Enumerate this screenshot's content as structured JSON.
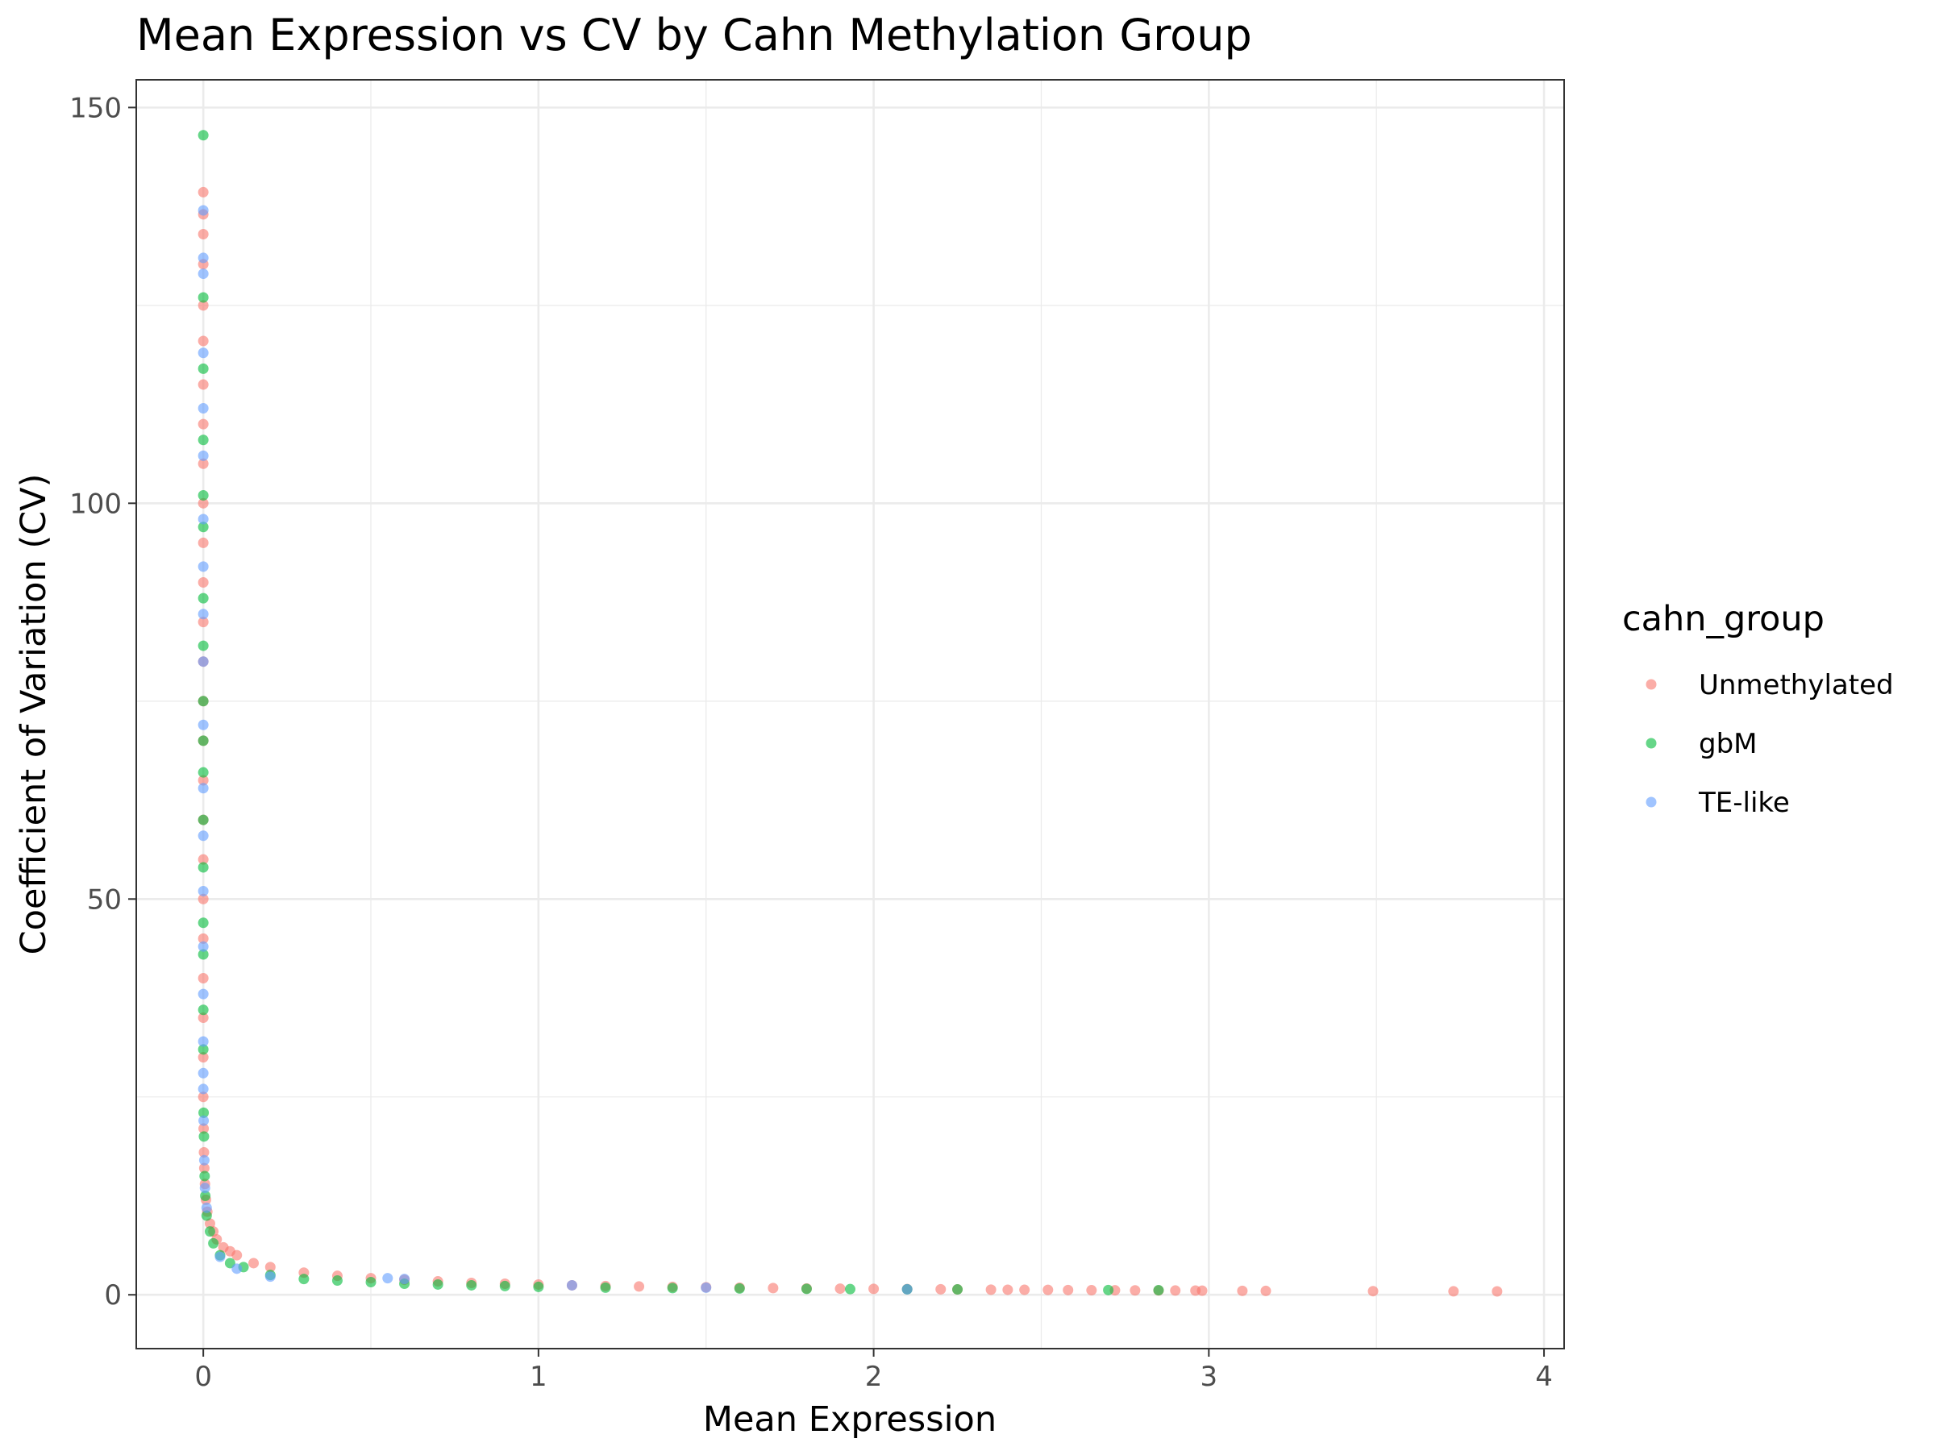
{
  "chart_data": {
    "type": "scatter",
    "title": "Mean Expression vs CV by Cahn Methylation Group",
    "xlabel": "Mean Expression",
    "ylabel": "Coefficient of Variation (CV)",
    "xlim": [
      -0.2,
      4.06
    ],
    "ylim": [
      -6.8,
      153.5
    ],
    "x_ticks": [
      0,
      1,
      2,
      3,
      4
    ],
    "x_tick_labels": [
      "0",
      "1",
      "2",
      "3",
      "4"
    ],
    "y_ticks": [
      0,
      50,
      100,
      150
    ],
    "y_tick_labels": [
      "0",
      "50",
      "100",
      "150"
    ],
    "grid": true,
    "legend": {
      "title": "cahn_group",
      "position": "right",
      "entries": [
        {
          "label": "Unmethylated",
          "color": "#F8766D"
        },
        {
          "label": "gbM",
          "color": "#00BA38"
        },
        {
          "label": "TE-like",
          "color": "#619CFF"
        }
      ]
    },
    "trend": "CV decreases sharply as mean expression increases, approximately CV ≈ 1/sqrt(mean)",
    "series": [
      {
        "name": "Unmethylated",
        "color": "#F8766D",
        "points": [
          [
            0.0,
            139.3
          ],
          [
            0.0,
            136.5
          ],
          [
            0.0,
            134.0
          ],
          [
            0.0,
            130.2
          ],
          [
            0.0,
            125.0
          ],
          [
            0.0,
            120.5
          ],
          [
            0.0,
            115.0
          ],
          [
            0.0,
            110.0
          ],
          [
            0.0,
            105.0
          ],
          [
            0.0,
            100.0
          ],
          [
            0.0,
            95.0
          ],
          [
            0.0,
            90.0
          ],
          [
            0.0,
            85.0
          ],
          [
            0.0,
            80.0
          ],
          [
            0.0,
            75.0
          ],
          [
            0.0,
            70.0
          ],
          [
            0.0,
            65.0
          ],
          [
            0.0,
            60.0
          ],
          [
            0.0,
            55.0
          ],
          [
            0.0,
            50.0
          ],
          [
            0.0,
            45.0
          ],
          [
            0.0,
            40.0
          ],
          [
            0.0,
            35.0
          ],
          [
            0.0,
            30.0
          ],
          [
            0.0,
            25.0
          ],
          [
            0.001,
            21.0
          ],
          [
            0.002,
            18.0
          ],
          [
            0.003,
            16.0
          ],
          [
            0.005,
            14.0
          ],
          [
            0.008,
            12.0
          ],
          [
            0.012,
            10.5
          ],
          [
            0.02,
            9.0
          ],
          [
            0.03,
            8.0
          ],
          [
            0.04,
            7.0
          ],
          [
            0.06,
            6.0
          ],
          [
            0.08,
            5.5
          ],
          [
            0.1,
            5.0
          ],
          [
            0.15,
            4.0
          ],
          [
            0.2,
            3.5
          ],
          [
            0.3,
            2.8
          ],
          [
            0.4,
            2.4
          ],
          [
            0.5,
            2.1
          ],
          [
            0.6,
            1.9
          ],
          [
            0.7,
            1.7
          ],
          [
            0.8,
            1.5
          ],
          [
            0.9,
            1.4
          ],
          [
            1.0,
            1.3
          ],
          [
            1.1,
            1.2
          ],
          [
            1.2,
            1.1
          ],
          [
            1.3,
            1.05
          ],
          [
            1.4,
            1.0
          ],
          [
            1.5,
            0.95
          ],
          [
            1.6,
            0.9
          ],
          [
            1.7,
            0.85
          ],
          [
            1.8,
            0.8
          ],
          [
            1.9,
            0.78
          ],
          [
            2.0,
            0.75
          ],
          [
            2.1,
            0.72
          ],
          [
            2.2,
            0.7
          ],
          [
            2.25,
            0.68
          ],
          [
            2.35,
            0.65
          ],
          [
            2.4,
            0.64
          ],
          [
            2.45,
            0.63
          ],
          [
            2.52,
            0.62
          ],
          [
            2.58,
            0.6
          ],
          [
            2.65,
            0.58
          ],
          [
            2.72,
            0.57
          ],
          [
            2.78,
            0.56
          ],
          [
            2.85,
            0.55
          ],
          [
            2.9,
            0.54
          ],
          [
            2.96,
            0.53
          ],
          [
            2.98,
            0.52
          ],
          [
            3.1,
            0.5
          ],
          [
            3.17,
            0.49
          ],
          [
            3.49,
            0.46
          ],
          [
            3.73,
            0.44
          ],
          [
            3.86,
            0.43
          ]
        ]
      },
      {
        "name": "gbM",
        "color": "#00BA38",
        "points": [
          [
            0.0,
            146.5
          ],
          [
            0.0,
            126.0
          ],
          [
            0.0,
            117.0
          ],
          [
            0.0,
            108.0
          ],
          [
            0.0,
            101.0
          ],
          [
            0.0,
            97.0
          ],
          [
            0.0,
            88.0
          ],
          [
            0.0,
            82.0
          ],
          [
            0.0,
            75.0
          ],
          [
            0.0,
            70.0
          ],
          [
            0.0,
            66.0
          ],
          [
            0.0,
            60.0
          ],
          [
            0.0,
            54.0
          ],
          [
            0.0,
            47.0
          ],
          [
            0.0,
            43.0
          ],
          [
            0.0,
            36.0
          ],
          [
            0.0,
            31.0
          ],
          [
            0.001,
            23.0
          ],
          [
            0.002,
            20.0
          ],
          [
            0.004,
            15.0
          ],
          [
            0.006,
            12.5
          ],
          [
            0.01,
            10.0
          ],
          [
            0.02,
            8.0
          ],
          [
            0.03,
            6.5
          ],
          [
            0.05,
            5.0
          ],
          [
            0.08,
            4.0
          ],
          [
            0.12,
            3.5
          ],
          [
            0.2,
            2.5
          ],
          [
            0.3,
            2.0
          ],
          [
            0.4,
            1.8
          ],
          [
            0.5,
            1.6
          ],
          [
            0.6,
            1.4
          ],
          [
            0.7,
            1.3
          ],
          [
            0.8,
            1.2
          ],
          [
            0.9,
            1.1
          ],
          [
            1.0,
            1.0
          ],
          [
            1.2,
            0.9
          ],
          [
            1.4,
            0.85
          ],
          [
            1.6,
            0.8
          ],
          [
            1.8,
            0.75
          ],
          [
            1.93,
            0.72
          ],
          [
            2.1,
            0.7
          ],
          [
            2.25,
            0.68
          ],
          [
            2.7,
            0.6
          ],
          [
            2.85,
            0.58
          ]
        ]
      },
      {
        "name": "TE-like",
        "color": "#619CFF",
        "points": [
          [
            0.0,
            137.0
          ],
          [
            0.0,
            131.0
          ],
          [
            0.0,
            129.0
          ],
          [
            0.0,
            119.0
          ],
          [
            0.0,
            112.0
          ],
          [
            0.0,
            106.0
          ],
          [
            0.0,
            98.0
          ],
          [
            0.0,
            92.0
          ],
          [
            0.0,
            86.0
          ],
          [
            0.0,
            80.0
          ],
          [
            0.0,
            72.0
          ],
          [
            0.0,
            64.0
          ],
          [
            0.0,
            58.0
          ],
          [
            0.0,
            51.0
          ],
          [
            0.0,
            44.0
          ],
          [
            0.0,
            38.0
          ],
          [
            0.0,
            32.0
          ],
          [
            0.0,
            28.0
          ],
          [
            0.0,
            26.0
          ],
          [
            0.001,
            22.0
          ],
          [
            0.003,
            17.0
          ],
          [
            0.005,
            13.5
          ],
          [
            0.01,
            11.0
          ],
          [
            0.05,
            4.8
          ],
          [
            0.1,
            3.3
          ],
          [
            0.2,
            2.3
          ],
          [
            0.55,
            2.1
          ],
          [
            0.6,
            2.0
          ],
          [
            1.1,
            1.2
          ],
          [
            1.5,
            0.9
          ],
          [
            2.1,
            0.7
          ]
        ]
      }
    ]
  }
}
